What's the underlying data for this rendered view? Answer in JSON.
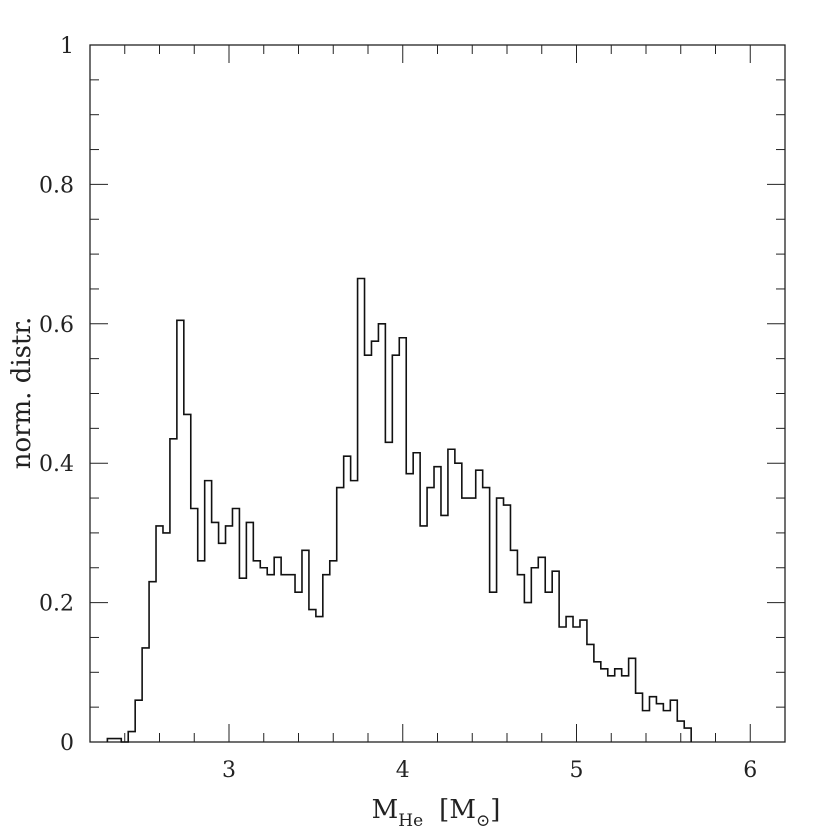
{
  "chart_data": {
    "type": "bar",
    "style": "step-histogram",
    "title": "",
    "xlabel": {
      "main": "M",
      "sub": "He",
      "bracket_open": "[",
      "bracket_close": "]",
      "unit_main": "M",
      "unit_sub": "⊙"
    },
    "ylabel": "norm. distr.",
    "xlim": [
      2.2,
      6.2
    ],
    "ylim": [
      0,
      1
    ],
    "x_ticks": [
      3,
      4,
      5,
      6
    ],
    "x_tick_labels": [
      "3",
      "4",
      "5",
      "6"
    ],
    "y_ticks": [
      0,
      0.2,
      0.4,
      0.6,
      0.8,
      1
    ],
    "y_tick_labels": [
      "0",
      "0.2",
      "0.4",
      "0.6",
      "0.8",
      "1"
    ],
    "x_minor_step": 0.2,
    "y_minor_step": 0.05,
    "grid": false,
    "bin_start": 2.3,
    "bin_width": 0.04,
    "values": [
      0.005,
      0.005,
      0.0,
      0.015,
      0.06,
      0.135,
      0.23,
      0.31,
      0.3,
      0.435,
      0.605,
      0.47,
      0.335,
      0.26,
      0.375,
      0.315,
      0.285,
      0.31,
      0.335,
      0.235,
      0.315,
      0.26,
      0.25,
      0.24,
      0.265,
      0.24,
      0.24,
      0.215,
      0.275,
      0.19,
      0.18,
      0.24,
      0.26,
      0.365,
      0.41,
      0.375,
      0.665,
      0.555,
      0.575,
      0.6,
      0.43,
      0.555,
      0.58,
      0.385,
      0.415,
      0.31,
      0.365,
      0.395,
      0.325,
      0.42,
      0.4,
      0.35,
      0.35,
      0.39,
      0.365,
      0.215,
      0.35,
      0.34,
      0.275,
      0.24,
      0.2,
      0.25,
      0.265,
      0.215,
      0.245,
      0.165,
      0.18,
      0.165,
      0.175,
      0.14,
      0.115,
      0.105,
      0.095,
      0.105,
      0.095,
      0.12,
      0.07,
      0.045,
      0.065,
      0.055,
      0.045,
      0.06,
      0.03,
      0.02
    ]
  }
}
